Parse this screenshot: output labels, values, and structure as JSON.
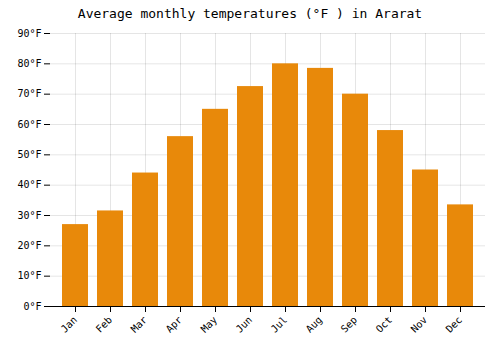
{
  "chart_data": {
    "type": "bar",
    "title": "Average monthly temperatures (°F ) in Ararat",
    "categories": [
      "Jan",
      "Feb",
      "Mar",
      "Apr",
      "May",
      "Jun",
      "Jul",
      "Aug",
      "Sep",
      "Oct",
      "Nov",
      "Dec"
    ],
    "values": [
      27,
      31.5,
      44,
      56,
      65,
      72.5,
      80,
      78.5,
      70,
      58,
      45,
      33.5
    ],
    "color": "#E8890A",
    "ylim": [
      0,
      90
    ],
    "yticks": [
      {
        "value": 0,
        "label": "0°F"
      },
      {
        "value": 10,
        "label": "10°F"
      },
      {
        "value": 20,
        "label": "20°F"
      },
      {
        "value": 30,
        "label": "30°F"
      },
      {
        "value": 40,
        "label": "40°F"
      },
      {
        "value": 50,
        "label": "50°F"
      },
      {
        "value": 60,
        "label": "60°F"
      },
      {
        "value": 70,
        "label": "70°F"
      },
      {
        "value": 80,
        "label": "80°F"
      },
      {
        "value": 90,
        "label": "90°F"
      }
    ],
    "grid": true
  }
}
